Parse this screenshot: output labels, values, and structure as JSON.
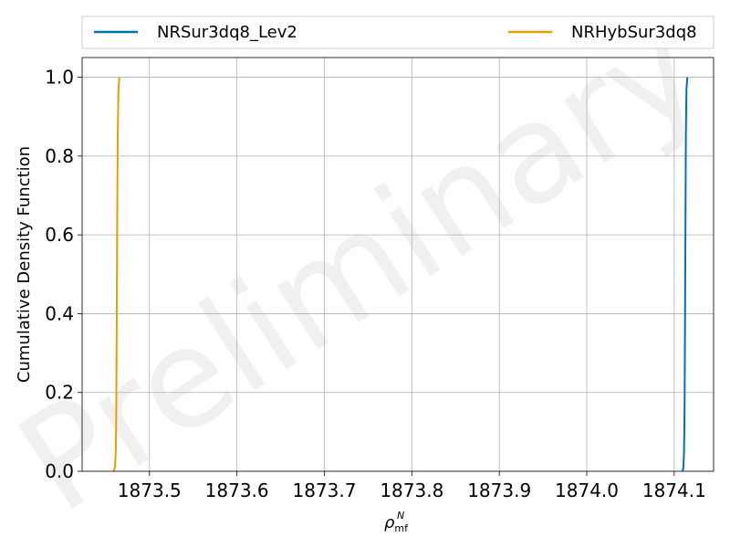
{
  "chart_data": {
    "type": "line",
    "title": "",
    "xlabel": "ρ_mf^N",
    "xlabel_main": "ρ",
    "xlabel_sub": "mf",
    "xlabel_sup": "N",
    "ylabel": "Cumulative Density Function",
    "xlim": [
      1873.423,
      1874.145
    ],
    "ylim": [
      0.0,
      1.05
    ],
    "xticks": [
      1873.5,
      1873.6,
      1873.7,
      1873.8,
      1873.9,
      1874.0,
      1874.1
    ],
    "xtick_labels": [
      "1873.5",
      "1873.6",
      "1873.7",
      "1873.8",
      "1873.9",
      "1874.0",
      "1874.1"
    ],
    "yticks": [
      0.0,
      0.2,
      0.4,
      0.6,
      0.8,
      1.0
    ],
    "ytick_labels": [
      "0.0",
      "0.2",
      "0.4",
      "0.6",
      "0.8",
      "1.0"
    ],
    "grid": true,
    "legend_position": "top, above plot",
    "watermark": "Preliminary",
    "series": [
      {
        "name": "NRSur3dq8_Lev2",
        "color": "#0072b2",
        "x": [
          1874.1095,
          1874.1105,
          1874.1112,
          1874.1118,
          1874.1123,
          1874.1128,
          1874.1133,
          1874.114,
          1874.115
        ],
        "y": [
          0.0,
          0.01,
          0.05,
          0.15,
          0.35,
          0.6,
          0.85,
          0.97,
          1.0
        ]
      },
      {
        "name": "NRHybSur3dq8",
        "color": "#e69f00",
        "x": [
          1873.459,
          1873.4605,
          1873.4615,
          1873.462,
          1873.4625,
          1873.463,
          1873.4637,
          1873.4645,
          1873.4655
        ],
        "y": [
          0.0,
          0.01,
          0.05,
          0.15,
          0.35,
          0.6,
          0.85,
          0.97,
          1.0
        ]
      }
    ]
  }
}
